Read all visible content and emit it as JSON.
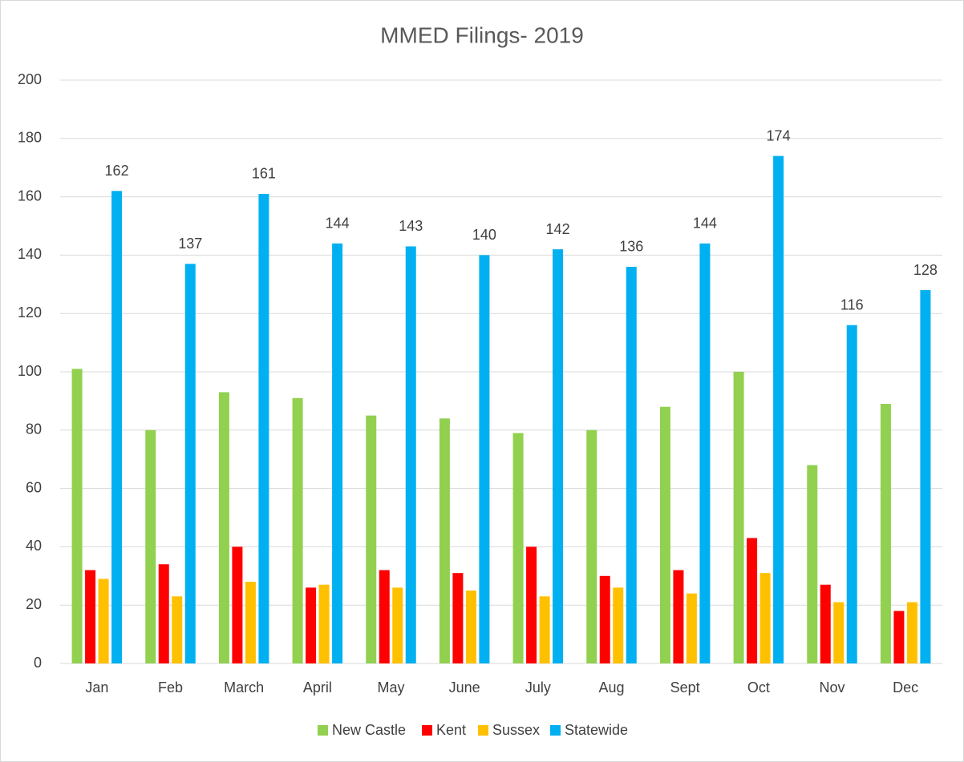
{
  "chart_data": {
    "type": "bar",
    "title": "MMED Filings- 2019",
    "categories": [
      "Jan",
      "Feb",
      "March",
      "April",
      "May",
      "June",
      "July",
      "Aug",
      "Sept",
      "Oct",
      "Nov",
      "Dec"
    ],
    "series": [
      {
        "name": "New Castle",
        "color": "#92d050",
        "values": [
          101,
          80,
          93,
          91,
          85,
          84,
          79,
          80,
          88,
          100,
          68,
          89
        ]
      },
      {
        "name": "Kent",
        "color": "#ff0000",
        "values": [
          32,
          34,
          40,
          26,
          32,
          31,
          40,
          30,
          32,
          43,
          27,
          18
        ]
      },
      {
        "name": "Sussex",
        "color": "#ffc000",
        "values": [
          29,
          23,
          28,
          27,
          26,
          25,
          23,
          26,
          24,
          31,
          21,
          21
        ]
      },
      {
        "name": "Statewide",
        "color": "#00b0f0",
        "values": [
          162,
          137,
          161,
          144,
          143,
          140,
          142,
          136,
          144,
          174,
          116,
          128
        ],
        "show_labels": true
      }
    ],
    "ylim": [
      0,
      200
    ],
    "yticks": [
      0,
      20,
      40,
      60,
      80,
      100,
      120,
      140,
      160,
      180,
      200
    ],
    "grid": true,
    "legend": "bottom"
  }
}
